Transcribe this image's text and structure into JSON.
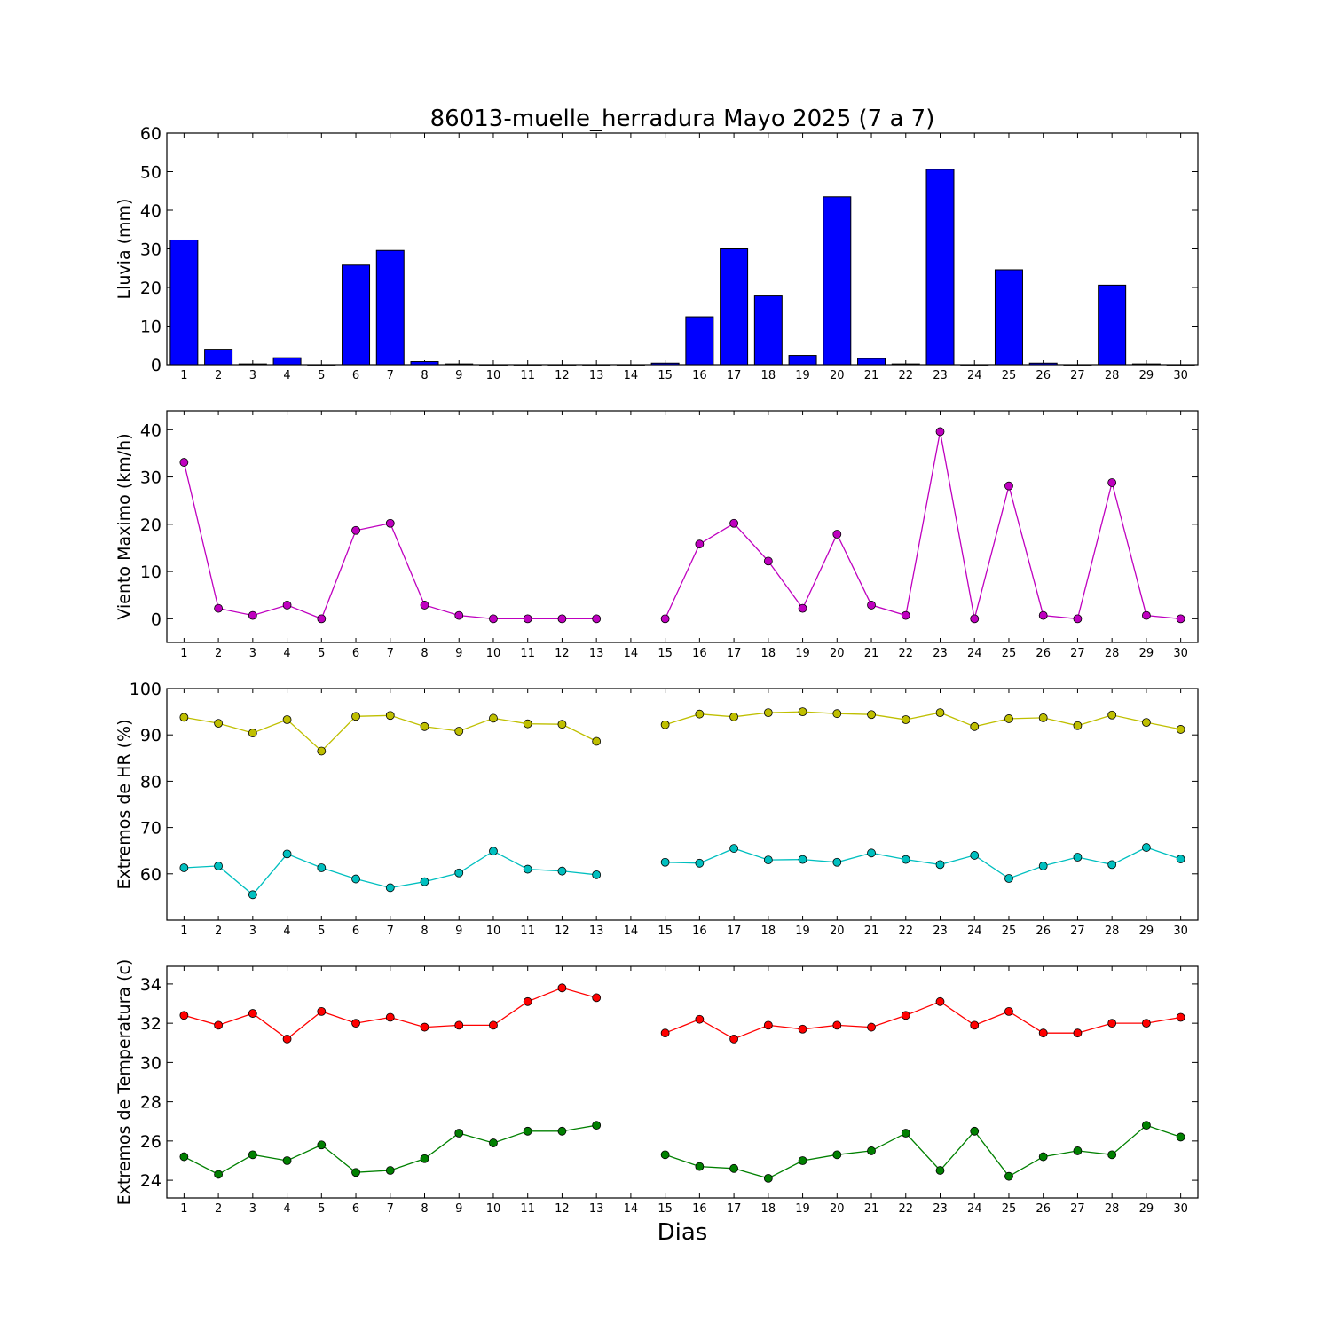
{
  "figure": {
    "title": "86013-muelle_herradura Mayo 2025  (7 a 7)",
    "xlabel": "Dias"
  },
  "colors": {
    "rain": "#0000ff",
    "wind": "#bf00bf",
    "hr_max": "#bfbf00",
    "hr_min": "#00bfbf",
    "temp_max": "#ff0000",
    "temp_min": "#008000"
  },
  "chart_data": [
    {
      "type": "bar",
      "ylabel": "Lluvia (mm)",
      "ylim": [
        0,
        60
      ],
      "yticks": [
        0,
        10,
        20,
        30,
        40,
        50,
        60
      ],
      "categories": [
        1,
        2,
        3,
        4,
        5,
        6,
        7,
        8,
        9,
        10,
        11,
        12,
        13,
        14,
        15,
        16,
        17,
        18,
        19,
        20,
        21,
        22,
        23,
        24,
        25,
        26,
        27,
        28,
        29,
        30
      ],
      "series": [
        {
          "values": [
            32.3,
            4.0,
            0.2,
            1.8,
            0,
            25.8,
            29.6,
            0.8,
            0.2,
            0,
            0,
            0,
            0,
            0,
            0.4,
            12.4,
            30.0,
            17.8,
            2.4,
            43.5,
            1.6,
            0.2,
            50.6,
            0,
            24.6,
            0.4,
            0,
            20.6,
            0.2,
            0
          ]
        }
      ]
    },
    {
      "type": "line",
      "ylabel": "Viento Maximo (km/h)",
      "ylim": [
        -5,
        44
      ],
      "yticks": [
        0,
        10,
        20,
        30,
        40
      ],
      "categories": [
        1,
        2,
        3,
        4,
        5,
        6,
        7,
        8,
        9,
        10,
        11,
        12,
        13,
        14,
        15,
        16,
        17,
        18,
        19,
        20,
        21,
        22,
        23,
        24,
        25,
        26,
        27,
        28,
        29,
        30
      ],
      "series": [
        {
          "values": [
            33.1,
            2.2,
            0.7,
            2.9,
            0,
            18.7,
            20.2,
            2.9,
            0.7,
            0,
            0,
            0,
            0,
            null,
            0,
            15.8,
            20.2,
            12.2,
            2.2,
            17.9,
            2.9,
            0.7,
            39.6,
            0,
            28.1,
            0.7,
            0,
            28.8,
            0.7,
            0
          ]
        }
      ]
    },
    {
      "type": "line",
      "ylabel": "Extremos de HR (%)",
      "ylim": [
        50,
        100
      ],
      "yticks": [
        60,
        70,
        80,
        90,
        100
      ],
      "categories": [
        1,
        2,
        3,
        4,
        5,
        6,
        7,
        8,
        9,
        10,
        11,
        12,
        13,
        14,
        15,
        16,
        17,
        18,
        19,
        20,
        21,
        22,
        23,
        24,
        25,
        26,
        27,
        28,
        29,
        30
      ],
      "series": [
        {
          "values": [
            93.8,
            92.5,
            90.4,
            93.3,
            86.5,
            94.0,
            94.2,
            91.8,
            90.8,
            93.6,
            92.4,
            92.3,
            88.6,
            null,
            92.2,
            94.5,
            93.9,
            94.8,
            95.0,
            94.6,
            94.4,
            93.3,
            94.8,
            91.8,
            93.5,
            93.7,
            92.0,
            94.3,
            92.7,
            91.2
          ]
        },
        {
          "values": [
            61.3,
            61.7,
            55.5,
            64.3,
            61.3,
            58.9,
            57.0,
            58.3,
            60.2,
            64.9,
            61.0,
            60.6,
            59.8,
            null,
            62.5,
            62.3,
            65.5,
            63.0,
            63.1,
            62.5,
            64.5,
            63.1,
            62.0,
            64.0,
            59.0,
            61.7,
            63.6,
            62.0,
            65.7,
            63.2
          ]
        }
      ]
    },
    {
      "type": "line",
      "ylabel": "Extremos de Temperatura (c)",
      "ylim": [
        23.1,
        34.9
      ],
      "yticks": [
        24,
        26,
        28,
        30,
        32,
        34
      ],
      "categories": [
        1,
        2,
        3,
        4,
        5,
        6,
        7,
        8,
        9,
        10,
        11,
        12,
        13,
        14,
        15,
        16,
        17,
        18,
        19,
        20,
        21,
        22,
        23,
        24,
        25,
        26,
        27,
        28,
        29,
        30
      ],
      "series": [
        {
          "values": [
            32.4,
            31.9,
            32.5,
            31.2,
            32.6,
            32.0,
            32.3,
            31.8,
            31.9,
            31.9,
            33.1,
            33.8,
            33.3,
            null,
            31.5,
            32.2,
            31.2,
            31.9,
            31.7,
            31.9,
            31.8,
            32.4,
            33.1,
            31.9,
            32.6,
            31.5,
            31.5,
            32.0,
            32.0,
            32.3
          ]
        },
        {
          "values": [
            25.2,
            24.3,
            25.3,
            25.0,
            25.8,
            24.4,
            24.5,
            25.1,
            26.4,
            25.9,
            26.5,
            26.5,
            26.8,
            null,
            25.3,
            24.7,
            24.6,
            24.1,
            25.0,
            25.3,
            25.5,
            26.4,
            24.5,
            26.5,
            24.2,
            25.2,
            25.5,
            25.3,
            26.8,
            26.2
          ]
        }
      ]
    }
  ]
}
